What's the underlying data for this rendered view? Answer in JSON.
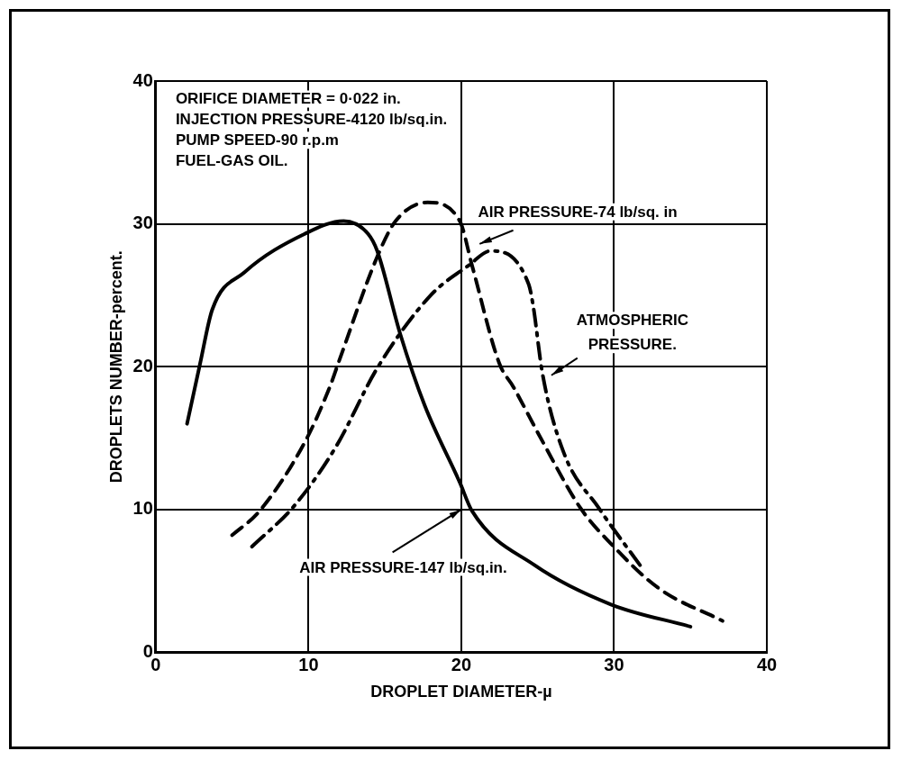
{
  "chart_data": {
    "type": "line",
    "xlabel": "DROPLET DIAMETER-µ",
    "ylabel": "DROPLETS NUMBER-percent.",
    "xlim": [
      0,
      40
    ],
    "xticks": [
      0,
      10,
      20,
      30,
      40
    ],
    "ylim": [
      0,
      40
    ],
    "yticks": [
      0,
      10,
      20,
      30,
      40
    ],
    "grid": true,
    "legend": false,
    "marker": "none",
    "series": [
      {
        "name": "AIR PRESSURE-147 lb/sq.in.",
        "color": "#000000",
        "line_style": "solid",
        "x": [
          2.05,
          2.9,
          3.7,
          5.8,
          9.75,
          12.3,
          13.9,
          14.5,
          16.0,
          17.6,
          19.9,
          20.7,
          24.8,
          29.8,
          35.0
        ],
        "values": [
          16.0,
          20.2,
          24.0,
          26.6,
          29.3,
          30.2,
          29.3,
          28.1,
          22.3,
          17.3,
          11.9,
          9.9,
          6.1,
          3.35,
          1.8
        ]
      },
      {
        "name": "AIR PRESSURE-74 lb/sq. in",
        "color": "#000000",
        "line_style": "dashed",
        "x": [
          5.0,
          6.8,
          9.75,
          11.4,
          12.0,
          14.5,
          15.7,
          17.8,
          19.9,
          20.7,
          22.5,
          23.4,
          25.3,
          27.8,
          29.8,
          32.9,
          37.1
        ],
        "values": [
          8.2,
          9.9,
          14.7,
          18.6,
          20.4,
          27.7,
          30.2,
          31.5,
          30.2,
          27.1,
          20.2,
          18.6,
          14.8,
          10.1,
          7.6,
          4.5,
          2.2
        ]
      },
      {
        "name": "ATMOSPHERIC PRESSURE.",
        "color": "#000000",
        "line_style": "dashdot",
        "x": [
          6.3,
          9.1,
          11.8,
          14.5,
          18.0,
          20.5,
          21.9,
          24.4,
          24.7,
          25.3,
          26.7,
          29.0,
          31.7
        ],
        "values": [
          7.4,
          10.3,
          14.4,
          19.9,
          25.0,
          27.1,
          28.1,
          25.8,
          24.3,
          19.6,
          14.0,
          10.1,
          6.1
        ]
      }
    ],
    "annotations": [
      "ORIFICE DIAMETER = 0·022 in.",
      "INJECTION PRESSURE-4120 lb/sq.in.",
      "PUMP SPEED-90 r.p.m",
      "FUEL-GAS OIL."
    ]
  }
}
